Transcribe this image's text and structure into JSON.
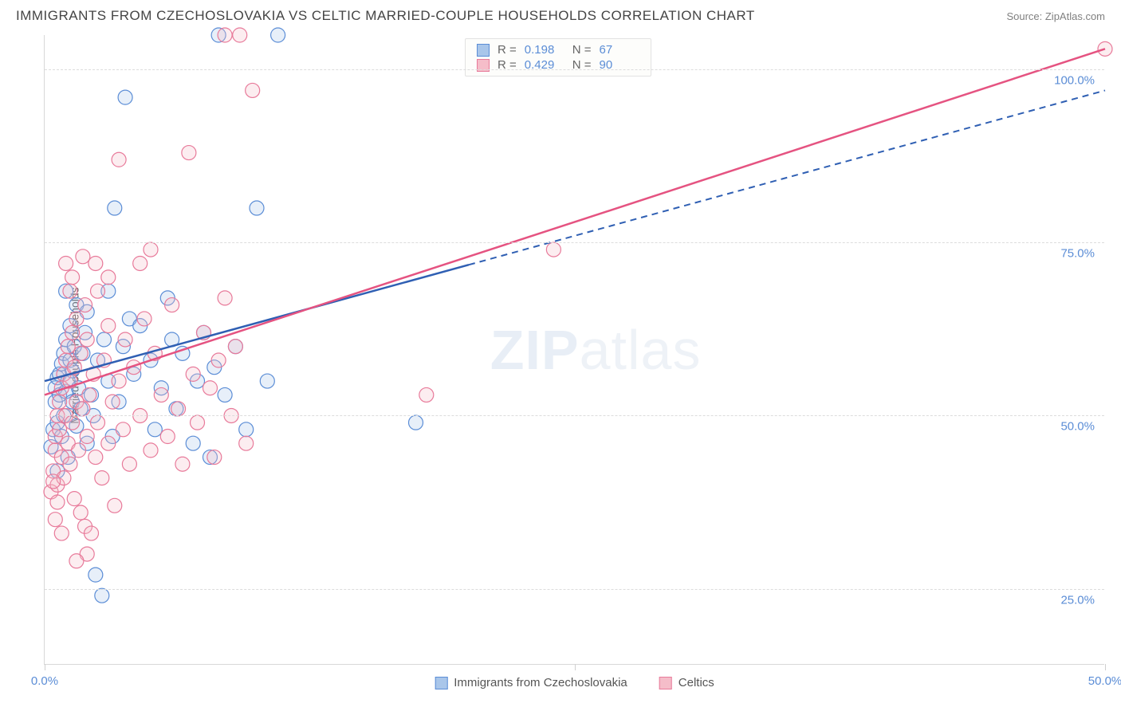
{
  "header": {
    "title": "IMMIGRANTS FROM CZECHOSLOVAKIA VS CELTIC MARRIED-COUPLE HOUSEHOLDS CORRELATION CHART",
    "source": "Source: ZipAtlas.com"
  },
  "watermark": {
    "zip": "ZIP",
    "atlas": "atlas"
  },
  "chart": {
    "type": "scatter",
    "ylabel": "Married-couple Households",
    "background_color": "#ffffff",
    "grid_color": "#dcdcdc",
    "axis_color": "#d8d8d8",
    "tick_label_color": "#5b8dd6",
    "xlim": [
      0,
      50
    ],
    "ylim": [
      14,
      105
    ],
    "xticks": [
      {
        "value": 0,
        "label": "0.0%"
      },
      {
        "value": 25,
        "label": ""
      },
      {
        "value": 50,
        "label": "50.0%"
      }
    ],
    "yticks": [
      {
        "value": 25,
        "label": "25.0%"
      },
      {
        "value": 50,
        "label": "50.0%"
      },
      {
        "value": 75,
        "label": "75.0%"
      },
      {
        "value": 100,
        "label": "100.0%"
      }
    ],
    "marker_radius": 9,
    "marker_fill_opacity": 0.28,
    "marker_stroke_width": 1.2,
    "series": [
      {
        "name": "Immigrants from Czechoslovakia",
        "color_fill": "#a9c6ea",
        "color_stroke": "#5b8dd6",
        "trend_color": "#2f5fb3",
        "trend_dash_after_x": 20,
        "R": "0.198",
        "N": "67",
        "trend": {
          "x1": 0,
          "y1": 55,
          "x2": 50,
          "y2": 97
        },
        "points": [
          [
            0.3,
            45.5
          ],
          [
            0.4,
            48
          ],
          [
            0.5,
            52
          ],
          [
            0.5,
            54
          ],
          [
            0.6,
            49
          ],
          [
            0.6,
            55.5
          ],
          [
            0.7,
            53
          ],
          [
            0.7,
            56
          ],
          [
            0.8,
            47
          ],
          [
            0.8,
            57.5
          ],
          [
            0.9,
            50
          ],
          [
            0.9,
            59
          ],
          [
            1.0,
            53.5
          ],
          [
            1.0,
            61
          ],
          [
            1.1,
            55
          ],
          [
            1.1,
            44
          ],
          [
            1.2,
            58
          ],
          [
            1.2,
            63
          ],
          [
            1.3,
            52
          ],
          [
            1.3,
            56.5
          ],
          [
            1.4,
            60
          ],
          [
            1.5,
            48.5
          ],
          [
            1.5,
            66
          ],
          [
            1.6,
            54
          ],
          [
            1.7,
            51
          ],
          [
            1.8,
            59
          ],
          [
            1.9,
            62
          ],
          [
            2.0,
            46
          ],
          [
            2.0,
            65
          ],
          [
            2.2,
            53
          ],
          [
            2.3,
            50
          ],
          [
            2.4,
            27
          ],
          [
            2.5,
            58
          ],
          [
            2.7,
            24
          ],
          [
            2.8,
            61
          ],
          [
            3.0,
            55
          ],
          [
            3.0,
            68
          ],
          [
            3.2,
            47
          ],
          [
            3.3,
            80
          ],
          [
            3.5,
            52
          ],
          [
            3.7,
            60
          ],
          [
            3.8,
            96
          ],
          [
            4.0,
            64
          ],
          [
            4.2,
            56
          ],
          [
            4.5,
            63
          ],
          [
            5.0,
            58
          ],
          [
            5.2,
            48
          ],
          [
            5.5,
            54
          ],
          [
            5.8,
            67
          ],
          [
            6.0,
            61
          ],
          [
            6.2,
            51
          ],
          [
            6.5,
            59
          ],
          [
            7.0,
            46
          ],
          [
            7.2,
            55
          ],
          [
            7.5,
            62
          ],
          [
            7.8,
            44
          ],
          [
            8.0,
            57
          ],
          [
            8.2,
            105
          ],
          [
            8.5,
            53
          ],
          [
            9.0,
            60
          ],
          [
            9.5,
            48
          ],
          [
            10.0,
            80
          ],
          [
            10.5,
            55
          ],
          [
            11,
            105
          ],
          [
            17.5,
            49
          ],
          [
            1.0,
            68
          ],
          [
            0.6,
            42
          ]
        ]
      },
      {
        "name": "Celtics",
        "color_fill": "#f5bdc9",
        "color_stroke": "#e87a9a",
        "trend_color": "#e55381",
        "trend_dash_after_x": 999,
        "R": "0.429",
        "N": "90",
        "trend": {
          "x1": 0,
          "y1": 53,
          "x2": 50,
          "y2": 103
        },
        "points": [
          [
            0.3,
            39
          ],
          [
            0.4,
            42
          ],
          [
            0.5,
            45
          ],
          [
            0.5,
            47
          ],
          [
            0.6,
            40
          ],
          [
            0.6,
            50
          ],
          [
            0.7,
            48
          ],
          [
            0.7,
            52
          ],
          [
            0.8,
            44
          ],
          [
            0.8,
            54
          ],
          [
            0.9,
            41
          ],
          [
            0.9,
            56
          ],
          [
            1.0,
            50
          ],
          [
            1.0,
            58
          ],
          [
            1.1,
            46
          ],
          [
            1.1,
            60
          ],
          [
            1.2,
            43
          ],
          [
            1.2,
            55
          ],
          [
            1.3,
            49
          ],
          [
            1.3,
            62
          ],
          [
            1.4,
            38
          ],
          [
            1.4,
            57
          ],
          [
            1.5,
            52
          ],
          [
            1.5,
            64
          ],
          [
            1.6,
            45
          ],
          [
            1.7,
            36
          ],
          [
            1.7,
            59
          ],
          [
            1.8,
            51
          ],
          [
            1.9,
            34
          ],
          [
            1.9,
            66
          ],
          [
            2.0,
            47
          ],
          [
            2.0,
            61
          ],
          [
            2.1,
            53
          ],
          [
            2.2,
            33
          ],
          [
            2.3,
            56
          ],
          [
            2.4,
            44
          ],
          [
            2.5,
            49
          ],
          [
            2.5,
            68
          ],
          [
            2.7,
            41
          ],
          [
            2.8,
            58
          ],
          [
            3.0,
            46
          ],
          [
            3.0,
            63
          ],
          [
            3.2,
            52
          ],
          [
            3.3,
            37
          ],
          [
            3.5,
            55
          ],
          [
            3.7,
            48
          ],
          [
            3.8,
            61
          ],
          [
            4.0,
            43
          ],
          [
            4.2,
            57
          ],
          [
            4.5,
            50
          ],
          [
            4.7,
            64
          ],
          [
            5.0,
            45
          ],
          [
            5.2,
            59
          ],
          [
            5.5,
            53
          ],
          [
            5.8,
            47
          ],
          [
            6.0,
            66
          ],
          [
            6.3,
            51
          ],
          [
            6.5,
            43
          ],
          [
            6.8,
            88
          ],
          [
            7.0,
            56
          ],
          [
            7.2,
            49
          ],
          [
            7.5,
            62
          ],
          [
            7.8,
            54
          ],
          [
            8.0,
            44
          ],
          [
            8.2,
            58
          ],
          [
            8.5,
            67
          ],
          [
            8.8,
            50
          ],
          [
            9.0,
            60
          ],
          [
            9.2,
            105
          ],
          [
            9.5,
            46
          ],
          [
            9.8,
            97
          ],
          [
            1.0,
            72
          ],
          [
            1.3,
            70
          ],
          [
            1.8,
            73
          ],
          [
            3.5,
            87
          ],
          [
            5.0,
            74
          ],
          [
            8.5,
            105
          ],
          [
            0.5,
            35
          ],
          [
            24,
            74
          ],
          [
            50,
            103
          ],
          [
            0.8,
            33
          ],
          [
            2.0,
            30
          ],
          [
            1.5,
            29
          ],
          [
            18,
            53
          ],
          [
            1.2,
            68
          ],
          [
            0.6,
            37.5
          ],
          [
            0.4,
            40.5
          ],
          [
            2.4,
            72
          ],
          [
            3.0,
            70
          ],
          [
            4.5,
            72
          ]
        ]
      }
    ],
    "legend_bottom": [
      {
        "label": "Immigrants from Czechoslovakia",
        "fill": "#a9c6ea",
        "stroke": "#5b8dd6"
      },
      {
        "label": "Celtics",
        "fill": "#f5bdc9",
        "stroke": "#e87a9a"
      }
    ]
  }
}
